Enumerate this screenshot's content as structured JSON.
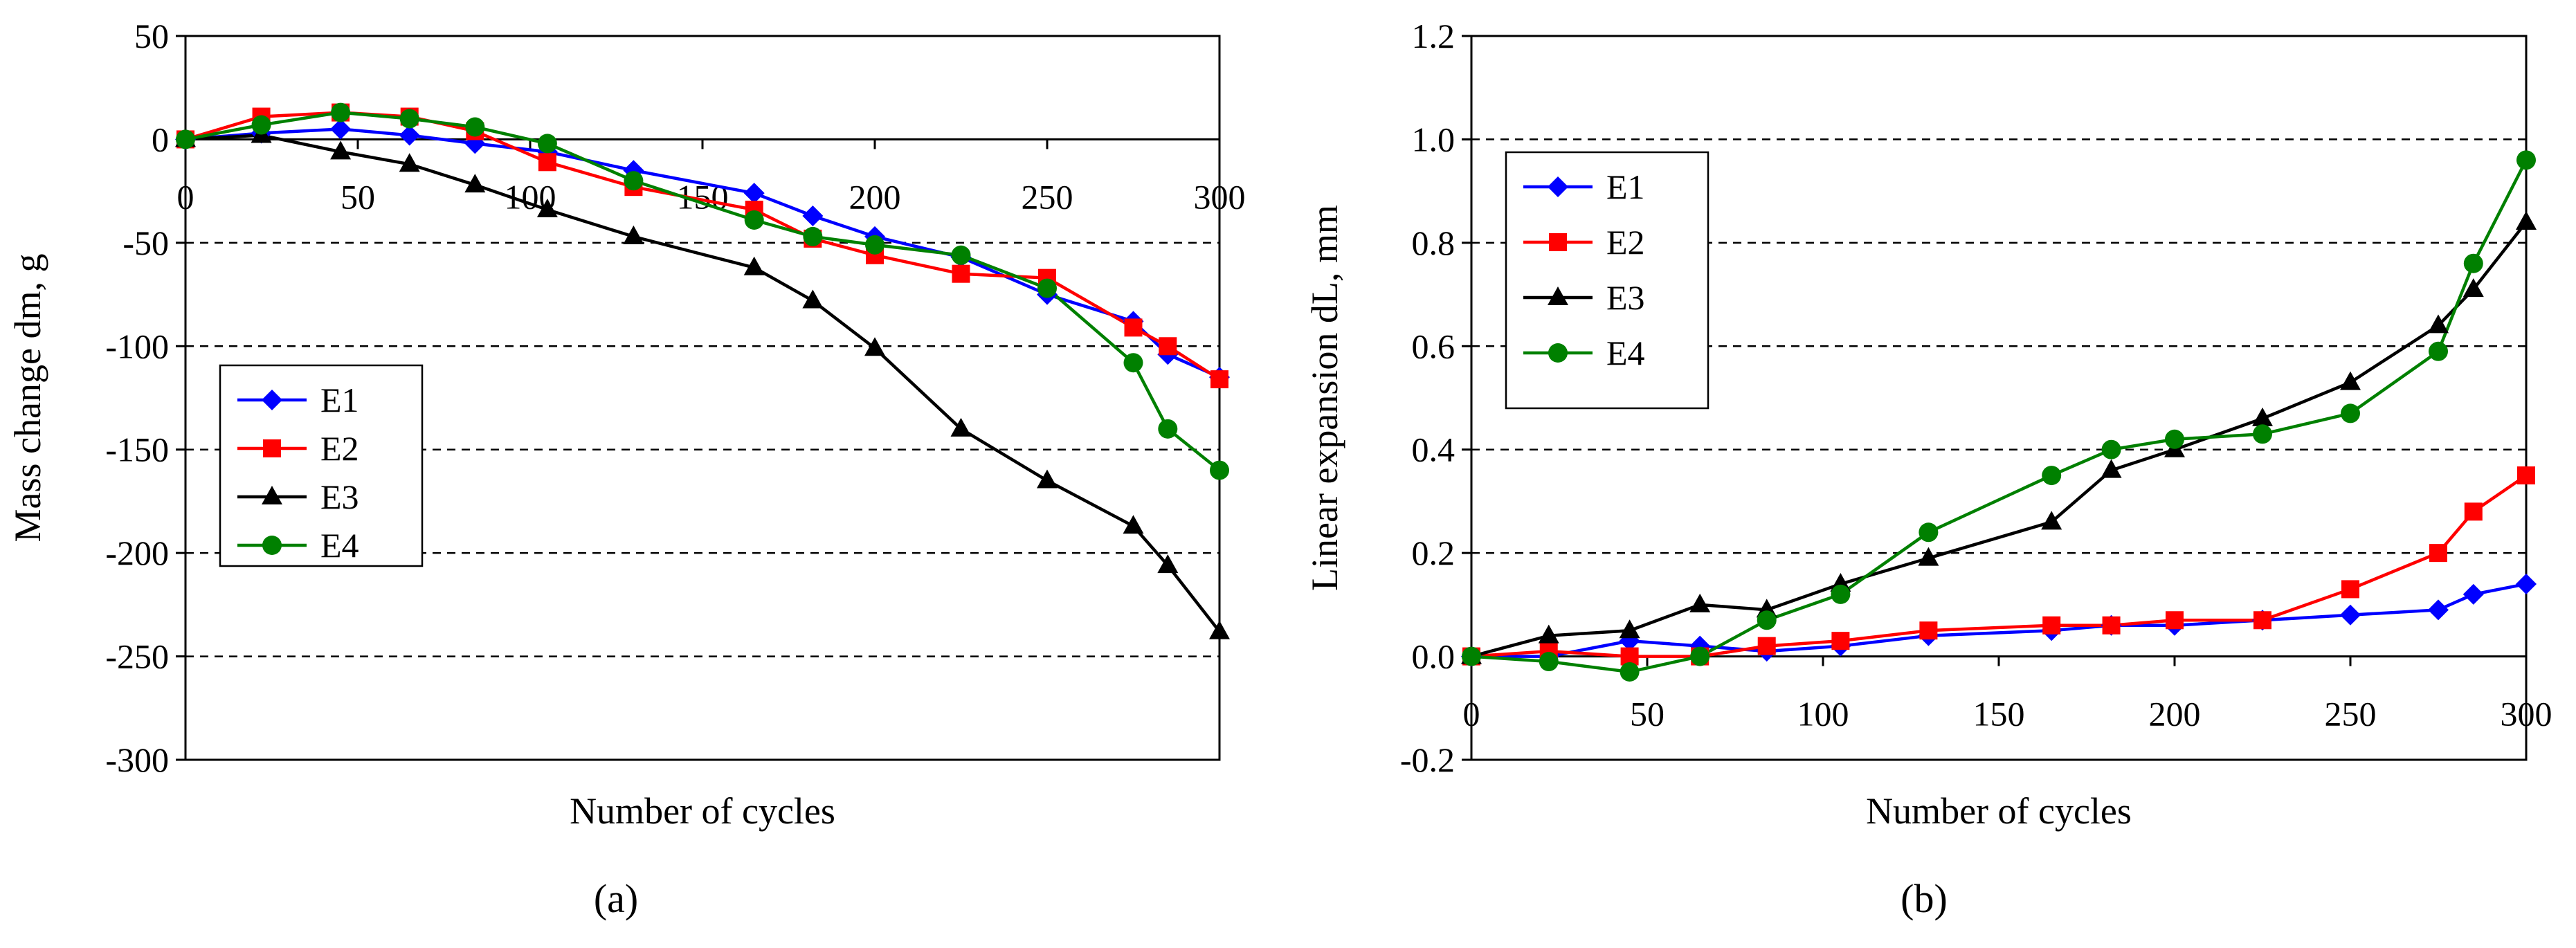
{
  "figure": {
    "panel_labels": [
      "(a)",
      "(b)"
    ]
  },
  "chart_data": [
    {
      "type": "line",
      "panel_label": "(a)",
      "title": "",
      "xlabel": "Number of cycles",
      "ylabel": "Mass change dm, g",
      "xlim": [
        0,
        300
      ],
      "ylim": [
        -300,
        50
      ],
      "xticks": [
        0,
        50,
        100,
        150,
        200,
        250,
        300
      ],
      "yticks": [
        50,
        0,
        -50,
        -100,
        -150,
        -200,
        -250,
        -300
      ],
      "gridlines_dashed": [
        -50,
        -100,
        -150,
        -200,
        -250
      ],
      "x_axis_at": 0,
      "legend_position": "bottom-left",
      "series": [
        {
          "name": "E1",
          "color": "#0000ff",
          "marker": "diamond",
          "x": [
            0,
            22,
            45,
            65,
            84,
            105,
            130,
            165,
            182,
            200,
            225,
            250,
            275,
            285,
            300
          ],
          "y": [
            0,
            3,
            5,
            2,
            -2,
            -6,
            -15,
            -26,
            -37,
            -47,
            -57,
            -75,
            -88,
            -104,
            -115
          ]
        },
        {
          "name": "E2",
          "color": "#ff0000",
          "marker": "square",
          "x": [
            0,
            22,
            45,
            65,
            84,
            105,
            130,
            165,
            182,
            200,
            225,
            250,
            275,
            285,
            300
          ],
          "y": [
            0,
            11,
            13,
            11,
            4,
            -11,
            -23,
            -34,
            -48,
            -56,
            -65,
            -67,
            -91,
            -100,
            -116
          ]
        },
        {
          "name": "E3",
          "color": "#000000",
          "marker": "triangle",
          "x": [
            0,
            22,
            45,
            65,
            84,
            105,
            130,
            165,
            182,
            200,
            225,
            250,
            275,
            285,
            300
          ],
          "y": [
            0,
            2,
            -6,
            -12,
            -22,
            -34,
            -47,
            -62,
            -78,
            -101,
            -140,
            -165,
            -187,
            -206,
            -238
          ]
        },
        {
          "name": "E4",
          "color": "#008000",
          "marker": "circle",
          "x": [
            0,
            22,
            45,
            65,
            84,
            105,
            130,
            165,
            182,
            200,
            225,
            250,
            275,
            285,
            300
          ],
          "y": [
            0,
            7,
            13,
            10,
            6,
            -2,
            -20,
            -39,
            -47,
            -51,
            -56,
            -72,
            -108,
            -140,
            -160
          ]
        }
      ]
    },
    {
      "type": "line",
      "panel_label": "(b)",
      "title": "",
      "xlabel": "Number of cycles",
      "ylabel": "Linear expansion dL, mm",
      "xlim": [
        0,
        300
      ],
      "ylim": [
        -0.2,
        1.2
      ],
      "xticks": [
        0,
        50,
        100,
        150,
        200,
        250,
        300
      ],
      "yticks": [
        "1.2",
        "1.0",
        "0.8",
        "0.6",
        "0.4",
        "0.2",
        "0.0",
        "-0.2"
      ],
      "gridlines_dashed": [
        1.0,
        0.8,
        0.6,
        0.4,
        0.2
      ],
      "x_axis_at": 0,
      "legend_position": "top-left",
      "series": [
        {
          "name": "E1",
          "color": "#0000ff",
          "marker": "diamond",
          "x": [
            0,
            22,
            45,
            65,
            84,
            105,
            130,
            165,
            182,
            200,
            225,
            250,
            275,
            285,
            300
          ],
          "y": [
            0,
            0.0,
            0.03,
            0.02,
            0.01,
            0.02,
            0.04,
            0.05,
            0.06,
            0.06,
            0.07,
            0.08,
            0.09,
            0.12,
            0.14
          ]
        },
        {
          "name": "E2",
          "color": "#ff0000",
          "marker": "square",
          "x": [
            0,
            22,
            45,
            65,
            84,
            105,
            130,
            165,
            182,
            200,
            225,
            250,
            275,
            285,
            300
          ],
          "y": [
            0,
            0.01,
            0.0,
            0.0,
            0.02,
            0.03,
            0.05,
            0.06,
            0.06,
            0.07,
            0.07,
            0.13,
            0.2,
            0.28,
            0.35
          ]
        },
        {
          "name": "E3",
          "color": "#000000",
          "marker": "triangle",
          "x": [
            0,
            22,
            45,
            65,
            84,
            105,
            130,
            165,
            182,
            200,
            225,
            250,
            275,
            285,
            300
          ],
          "y": [
            0,
            0.04,
            0.05,
            0.1,
            0.09,
            0.14,
            0.19,
            0.26,
            0.36,
            0.4,
            0.46,
            0.53,
            0.64,
            0.71,
            0.84
          ]
        },
        {
          "name": "E4",
          "color": "#008000",
          "marker": "circle",
          "x": [
            0,
            22,
            45,
            65,
            84,
            105,
            130,
            165,
            182,
            200,
            225,
            250,
            275,
            285,
            300
          ],
          "y": [
            0,
            -0.01,
            -0.03,
            0.0,
            0.07,
            0.12,
            0.24,
            0.35,
            0.4,
            0.42,
            0.43,
            0.47,
            0.59,
            0.76,
            0.96
          ]
        }
      ]
    }
  ]
}
